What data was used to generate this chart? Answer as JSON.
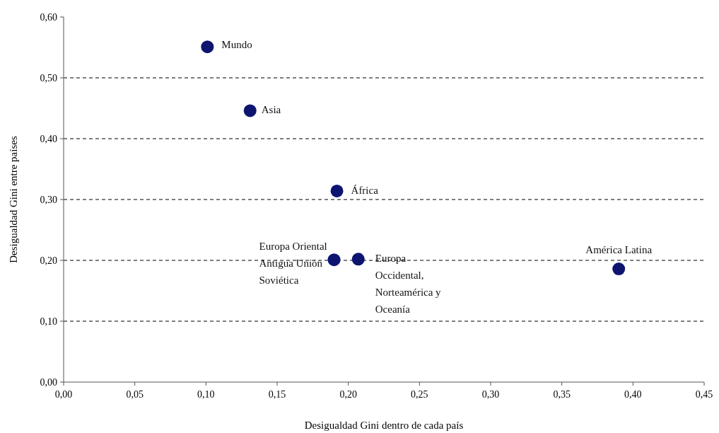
{
  "chart_data": {
    "type": "scatter",
    "xlabel": "Desigualdad Gini dentro de cada país",
    "ylabel": "Desigualdad Gini entre países",
    "x": [
      0.101,
      0.131,
      0.192,
      0.19,
      0.207,
      0.39
    ],
    "series": [
      {
        "color": "#0d1570",
        "values": [
          0.551,
          0.446,
          0.314,
          0.201,
          0.202,
          0.186
        ]
      }
    ],
    "marker": "circle",
    "grid": "y",
    "line_style": "dashed",
    "xlim": [
      0,
      0.45
    ],
    "ylim": [
      0,
      0.6
    ],
    "xticks": [
      {
        "value": 0,
        "label": "0,00"
      },
      {
        "value": 0.05,
        "label": "0,05"
      },
      {
        "value": 0.1,
        "label": "0,10"
      },
      {
        "value": 0.15,
        "label": "0,15"
      },
      {
        "value": 0.2,
        "label": "0,20"
      },
      {
        "value": 0.25,
        "label": "0,25"
      },
      {
        "value": 0.3,
        "label": "0,30"
      },
      {
        "value": 0.35,
        "label": "0,35"
      },
      {
        "value": 0.4,
        "label": "0,40"
      },
      {
        "value": 0.45,
        "label": "0,45"
      }
    ],
    "yticks": [
      {
        "value": 0,
        "label": "0,00"
      },
      {
        "value": 0.1,
        "label": "0,10"
      },
      {
        "value": 0.2,
        "label": "0,20"
      },
      {
        "value": 0.3,
        "label": "0,30"
      },
      {
        "value": 0.4,
        "label": "0,40"
      },
      {
        "value": 0.5,
        "label": "0,50"
      },
      {
        "value": 0.6,
        "label": "0,60"
      }
    ],
    "annotations": [
      {
        "text": "Mundo",
        "x": 0.101,
        "y": 0.551
      },
      {
        "text": "Asia",
        "x": 0.131,
        "y": 0.446
      },
      {
        "text": "África",
        "x": 0.192,
        "y": 0.314
      },
      {
        "text": "Europa Oriental\nAntigua Unión\nSoviética",
        "x": 0.19,
        "y": 0.201
      },
      {
        "text": "Europa\nOccidental,\nNorteamérica y\nOceanía",
        "x": 0.207,
        "y": 0.202
      },
      {
        "text": "América Latina",
        "x": 0.39,
        "y": 0.186
      }
    ]
  }
}
